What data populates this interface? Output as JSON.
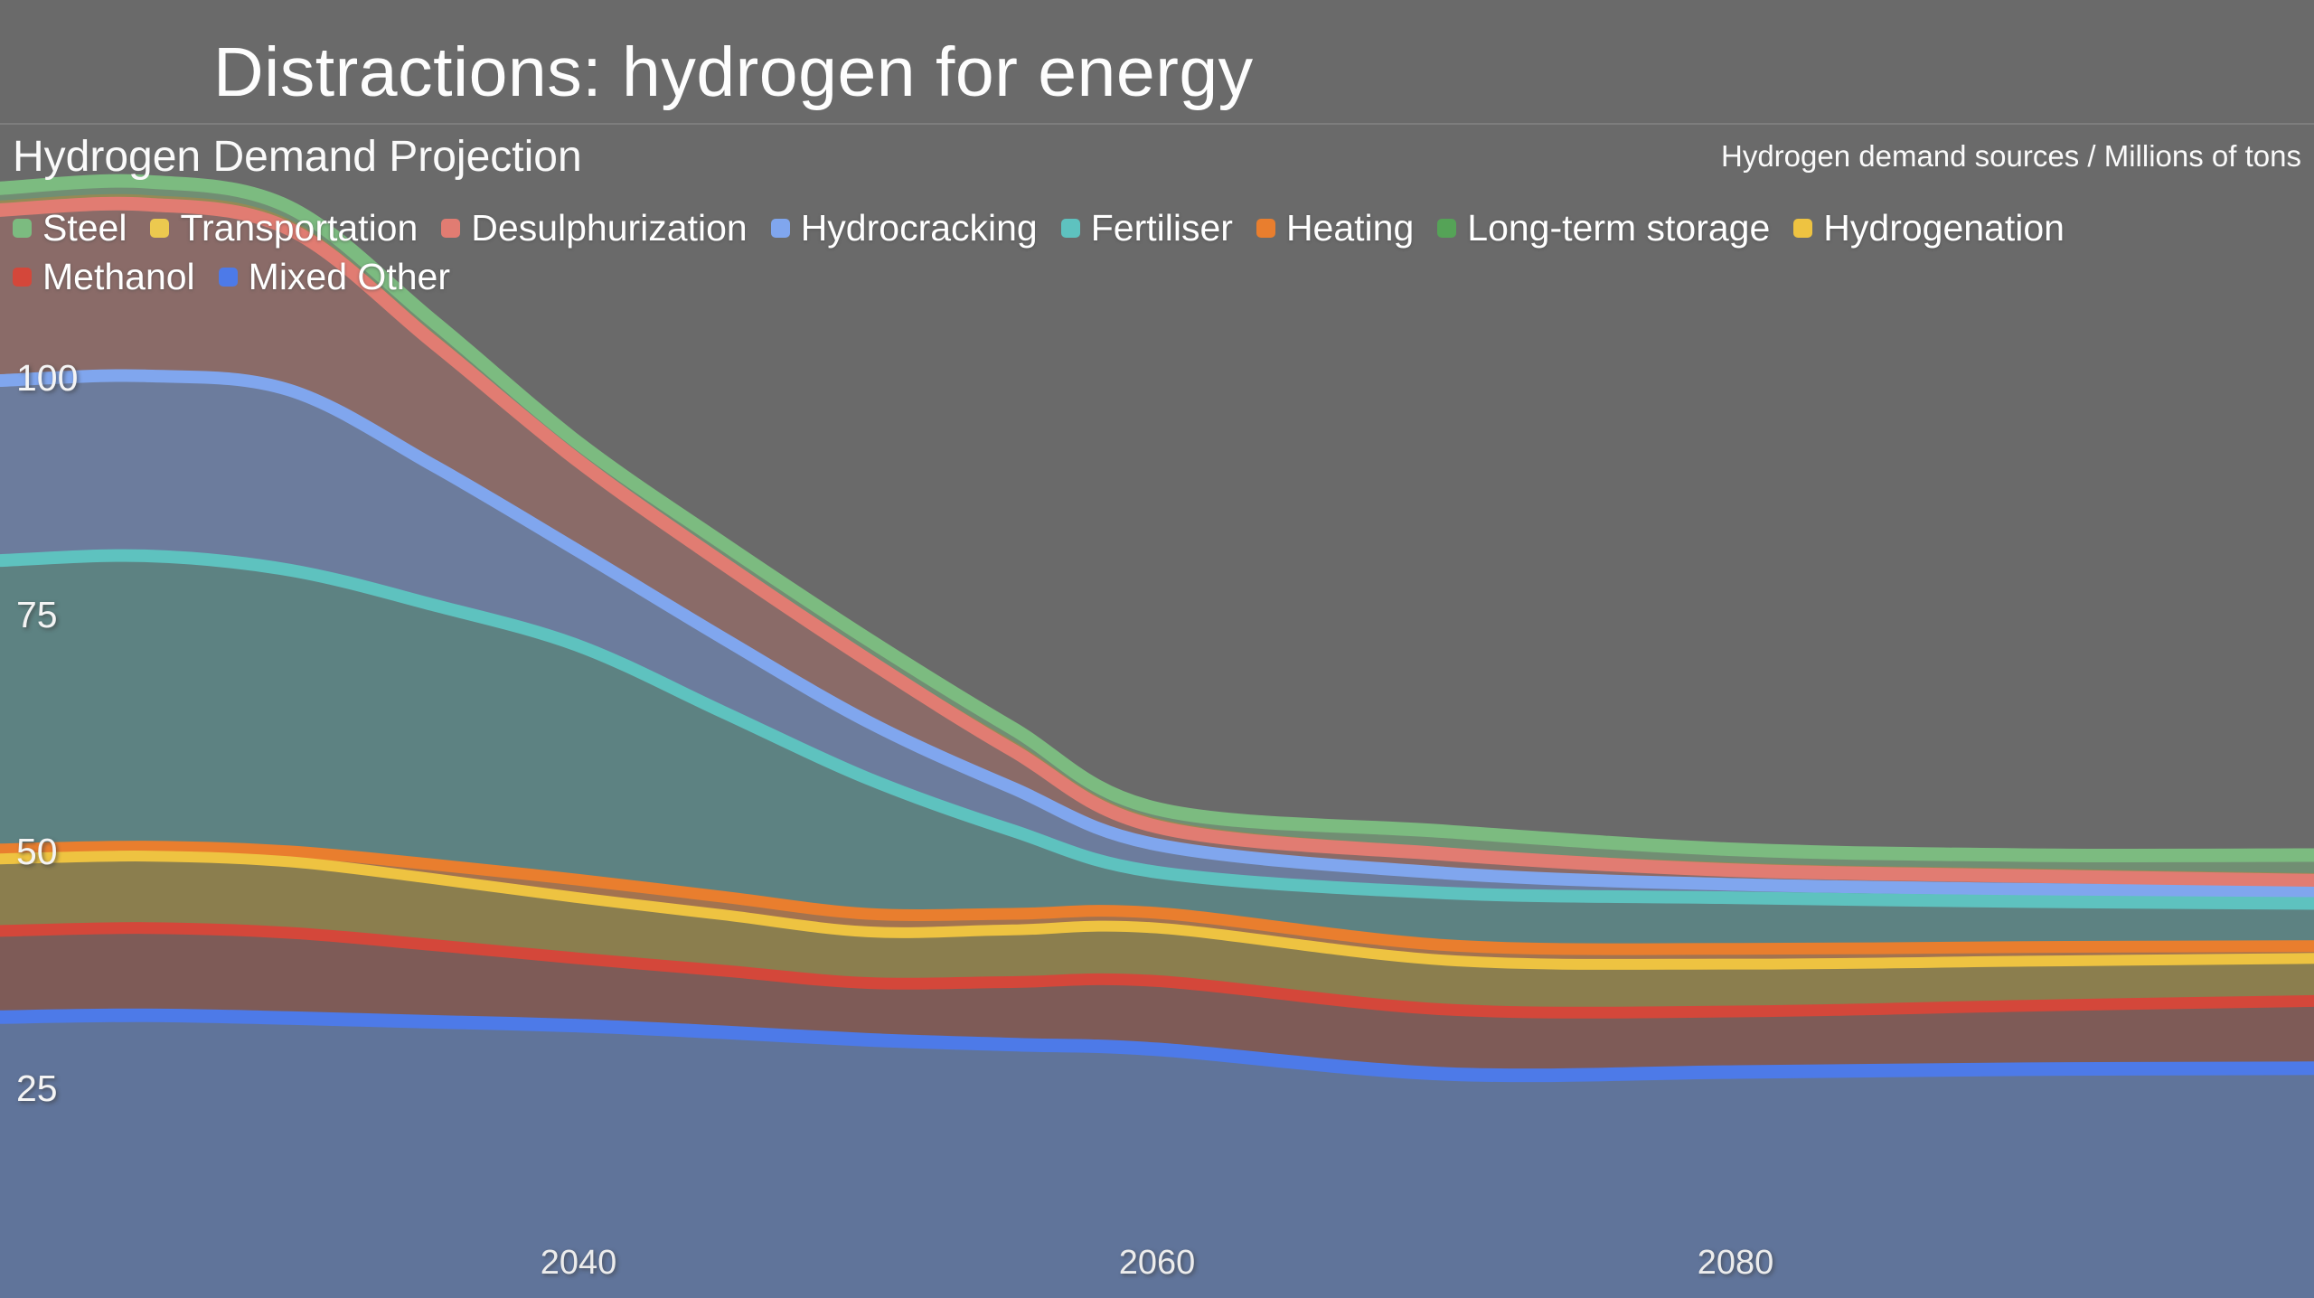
{
  "slide": {
    "title": "Distractions: hydrogen for energy"
  },
  "chart": {
    "title": "Hydrogen Demand Projection",
    "unit_label": "Hydrogen demand sources / Millions of tons"
  },
  "colors": {
    "background": "#6a6a6a",
    "divider": "#7d7d7d",
    "text": "#ffffff"
  },
  "legend_rows": [
    [
      "Steel",
      "Transportation",
      "Desulphurization",
      "Hydrocracking",
      "Fertiliser",
      "Heating",
      "Long-term storage",
      "Hydrogenation"
    ],
    [
      "Methanol",
      "Mixed Other"
    ]
  ],
  "chart_data": {
    "type": "area",
    "stacked": true,
    "title": "Hydrogen Demand Projection",
    "ylabel": "Millions of tons",
    "x": [
      2020,
      2025,
      2030,
      2035,
      2040,
      2045,
      2050,
      2055,
      2060,
      2070,
      2080,
      2090,
      2100
    ],
    "xlim": [
      2020,
      2100
    ],
    "x_ticks": [
      2040,
      2060,
      2080
    ],
    "y_ticks": [
      100,
      75,
      50,
      25
    ],
    "grid": false,
    "legend_position": "top-left",
    "series_note": "values are band thicknesses in millions of tons, stacked bottom-to-top",
    "series": [
      {
        "name": "Mixed Other",
        "color": "#4d7ae8",
        "fill": "#60749a",
        "values": [
          32.8,
          33.0,
          32.7,
          32.3,
          31.9,
          31.2,
          30.4,
          29.9,
          29.4,
          26.8,
          27.0,
          27.3,
          27.4
        ]
      },
      {
        "name": "Methanol",
        "color": "#d4473a",
        "fill": "#7e5b57",
        "values": [
          9.1,
          9.2,
          9.0,
          8.1,
          7.1,
          6.5,
          6.0,
          6.6,
          7.2,
          6.8,
          6.4,
          6.7,
          7.1
        ]
      },
      {
        "name": "Hydrogenation",
        "color": "#eec341",
        "fill": "#8b7e4e",
        "values": [
          7.6,
          7.6,
          7.5,
          7.0,
          6.4,
          5.9,
          5.4,
          5.5,
          5.6,
          5.2,
          5.0,
          4.7,
          4.5
        ]
      },
      {
        "name": "Long-term storage",
        "color": "#55a357",
        "fill": "#6f8d6a",
        "values": [
          0,
          0,
          0,
          0,
          0,
          0,
          0,
          0,
          0,
          0,
          0,
          0,
          0
        ]
      },
      {
        "name": "Heating",
        "color": "#e97e2e",
        "fill": "#a3734f",
        "values": [
          1.0,
          1.0,
          1.1,
          1.5,
          1.9,
          1.9,
          1.9,
          1.7,
          1.6,
          1.6,
          1.6,
          1.5,
          1.3
        ]
      },
      {
        "name": "Fertiliser",
        "color": "#5ec2bf",
        "fill": "#5d8282",
        "values": [
          30.5,
          30.7,
          29.7,
          27.4,
          24.7,
          19.5,
          14.3,
          8.8,
          4.3,
          5.5,
          5.4,
          4.8,
          4.5
        ]
      },
      {
        "name": "Hydrocracking",
        "color": "#80a6ee",
        "fill": "#6c7c9d",
        "values": [
          19.0,
          19.0,
          19.0,
          14.7,
          10.0,
          7.8,
          6.0,
          4.5,
          2.9,
          2.1,
          1.4,
          1.3,
          1.1
        ]
      },
      {
        "name": "Desulphurization",
        "color": "#e17c72",
        "fill": "#8a6b68",
        "values": [
          18.0,
          18.1,
          17.0,
          13.0,
          9.5,
          7.9,
          6.5,
          4.0,
          1.9,
          2.0,
          1.5,
          1.4,
          1.3
        ]
      },
      {
        "name": "Transportation",
        "color": "#ecc94f",
        "fill": "#958a55",
        "values": [
          1.0,
          1.0,
          1.0,
          1.0,
          0.8,
          0.8,
          0.7,
          1.0,
          0.9,
          0.7,
          0.8,
          0.8,
          0.8
        ]
      },
      {
        "name": "Steel",
        "color": "#7cbb80",
        "fill": "#718e73",
        "values": [
          1.3,
          1.4,
          1.3,
          1.2,
          1.1,
          1.3,
          1.5,
          1.3,
          1.0,
          1.7,
          1.4,
          1.4,
          1.9
        ]
      }
    ]
  }
}
